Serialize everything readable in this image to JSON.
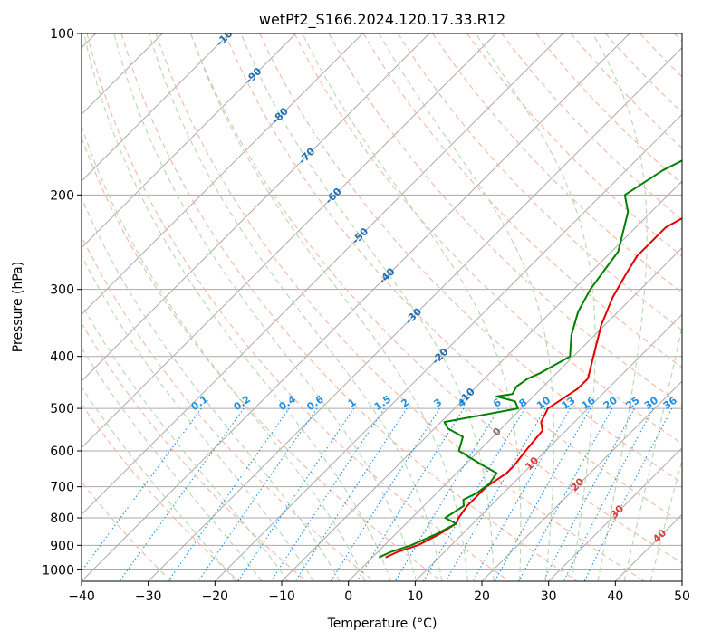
{
  "chart_data": {
    "type": "line",
    "title": "wetPf2_S166.2024.120.17.33.R12",
    "xlabel": "Temperature (°C)",
    "ylabel": "Pressure (hPa)",
    "xlim": [
      -40,
      50
    ],
    "ylim": [
      1050,
      100
    ],
    "y_scale": "log",
    "x_ticks": [
      -40,
      -30,
      -20,
      -10,
      0,
      10,
      20,
      30,
      40,
      50
    ],
    "y_ticks": [
      100,
      200,
      300,
      400,
      500,
      600,
      700,
      800,
      900,
      1000
    ],
    "grid": true,
    "series": [
      {
        "name": "",
        "color": "#e60000",
        "points": [
          [
            2,
            948
          ],
          [
            3,
            925
          ],
          [
            5,
            900
          ],
          [
            6.5,
            860
          ],
          [
            7.5,
            820
          ],
          [
            7,
            800
          ],
          [
            6.5,
            760
          ],
          [
            6.5,
            700
          ],
          [
            7,
            680
          ],
          [
            7.5,
            660
          ],
          [
            7.5,
            640
          ],
          [
            7,
            600
          ],
          [
            6.5,
            550
          ],
          [
            5,
            530
          ],
          [
            4,
            500
          ],
          [
            5.5,
            460
          ],
          [
            5.5,
            440
          ],
          [
            3,
            400
          ],
          [
            -0.5,
            350
          ],
          [
            -3,
            310
          ],
          [
            -4.5,
            280
          ],
          [
            -5.5,
            260
          ],
          [
            -5.5,
            230
          ],
          [
            -3,
            210
          ],
          [
            2,
            195
          ],
          [
            6,
            185
          ],
          [
            11,
            170
          ],
          [
            14,
            155
          ],
          [
            17,
            140
          ],
          [
            21,
            125
          ],
          [
            25,
            110
          ],
          [
            28,
            100
          ]
        ]
      },
      {
        "name": "",
        "color": "#008000",
        "points": [
          [
            1,
            948
          ],
          [
            2,
            925
          ],
          [
            4,
            900
          ],
          [
            6,
            860
          ],
          [
            7.5,
            820
          ],
          [
            5,
            800
          ],
          [
            6,
            760
          ],
          [
            5,
            740
          ],
          [
            6,
            720
          ],
          [
            6.5,
            690
          ],
          [
            6,
            660
          ],
          [
            3,
            640
          ],
          [
            -3,
            600
          ],
          [
            -4.5,
            565
          ],
          [
            -8,
            545
          ],
          [
            -9.5,
            530
          ],
          [
            -5,
            515
          ],
          [
            -0.5,
            500
          ],
          [
            -2,
            485
          ],
          [
            -5.5,
            475
          ],
          [
            -3.5,
            470
          ],
          [
            -4,
            455
          ],
          [
            -3.5,
            440
          ],
          [
            -2.5,
            430
          ],
          [
            -0.5,
            400
          ],
          [
            -3.5,
            365
          ],
          [
            -6,
            330
          ],
          [
            -7.5,
            300
          ],
          [
            -8.5,
            270
          ],
          [
            -9,
            255
          ],
          [
            -13.5,
            215
          ],
          [
            -16.5,
            200
          ],
          [
            -14.5,
            180
          ],
          [
            -10.5,
            160
          ],
          [
            -7,
            145
          ],
          [
            -3.5,
            130
          ],
          [
            -0.5,
            118
          ],
          [
            3,
            105
          ],
          [
            4,
            100
          ]
        ]
      }
    ],
    "dry_adiabats": [
      -100,
      -90,
      -80,
      -70,
      -60,
      -50,
      -40,
      -30,
      -20,
      -10
    ],
    "moist_adiabats": [
      0,
      10,
      20,
      30,
      40
    ],
    "mixing_ratios": [
      "0.1",
      "0.2",
      "0.4",
      "0.6",
      "1",
      "1.5",
      "2",
      "3",
      "4",
      "6",
      "8",
      "10",
      "13",
      "16",
      "20",
      "25",
      "30",
      "36"
    ],
    "colors": {
      "isotherm": "#aaaaaa",
      "dry_adiabat": "#f4b7a6",
      "moist_adiabat": "#b5d8b2",
      "mixing_ratio": "#1f8fe6",
      "dry_adiabat_label": "#1f6fb4",
      "moist_adiabat_label": "#d93a3a",
      "zero_label": "#777777"
    }
  }
}
